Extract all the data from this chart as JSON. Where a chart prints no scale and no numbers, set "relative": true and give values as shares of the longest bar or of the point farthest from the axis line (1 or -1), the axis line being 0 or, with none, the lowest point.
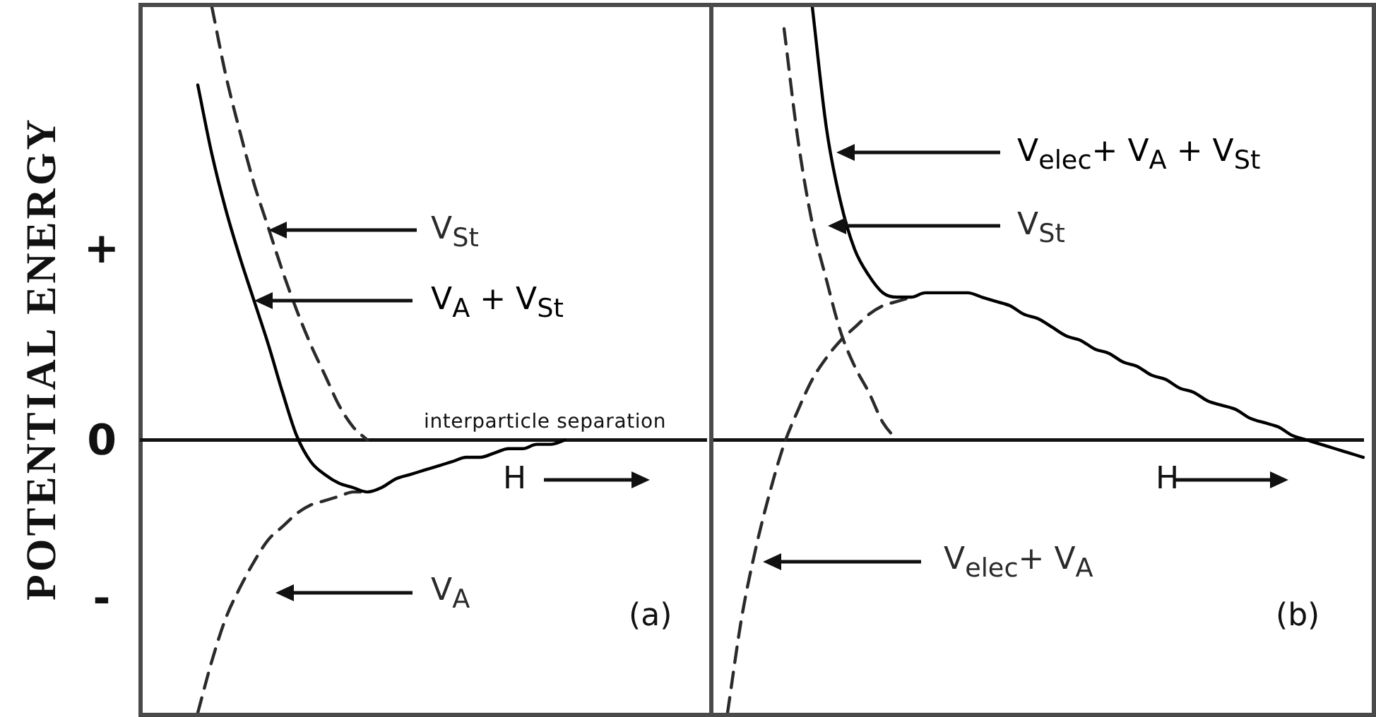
{
  "chart_data": [
    {
      "type": "line",
      "relative": true,
      "ylabel": "POTENTIAL ENERGY",
      "xlabel": "interparticle separation",
      "grid": false,
      "legend": false,
      "marker": "none",
      "categories": [
        null,
        null,
        null,
        null,
        null,
        null,
        null,
        null,
        null,
        null,
        null,
        null,
        null,
        null,
        null,
        null,
        null,
        null,
        null,
        null,
        null,
        null,
        null,
        null,
        null,
        null,
        null,
        null,
        null,
        null,
        null,
        null,
        null,
        null,
        null,
        null,
        null,
        null,
        null,
        null,
        null
      ],
      "series": [
        {
          "name": "V$_{St}$",
          "color": "#2a2a2a",
          "line_style": "dashed",
          "values": [
            null,
            null,
            null,
            null,
            null,
            1,
            0.84,
            0.71,
            0.59,
            0.49,
            0.39,
            0.3,
            0.22,
            0.15,
            0.08,
            0.03,
            0,
            null,
            null,
            null,
            null,
            null,
            null,
            null,
            null,
            null,
            null,
            null,
            null,
            null,
            null,
            null,
            null,
            null,
            null,
            null,
            null,
            null,
            null,
            null,
            null
          ]
        },
        {
          "name": "V$_{A}$ + V$_{St}$",
          "color": "#000000",
          "line_style": "solid",
          "values": [
            null,
            null,
            null,
            null,
            0.82,
            0.66,
            0.53,
            0.42,
            0.32,
            0.22,
            0.11,
            0.01,
            -0.05,
            -0.08,
            -0.1,
            -0.11,
            -0.12,
            -0.11,
            -0.09,
            -0.08,
            -0.07,
            -0.06,
            -0.05,
            -0.04,
            -0.04,
            -0.03,
            -0.02,
            -0.02,
            -0.01,
            -0.01,
            0,
            null,
            null,
            null,
            null,
            null,
            null,
            null,
            null,
            null,
            null
          ]
        },
        {
          "name": "V$_{A}$",
          "color": "#2a2a2a",
          "line_style": "dashed",
          "values": [
            null,
            null,
            null,
            null,
            -0.63,
            -0.51,
            -0.41,
            -0.34,
            -0.28,
            -0.23,
            -0.2,
            -0.17,
            -0.15,
            -0.14,
            -0.13,
            -0.12,
            -0.12,
            null,
            null,
            null,
            null,
            null,
            null,
            null,
            null,
            null,
            null,
            null,
            null,
            null,
            null,
            null,
            null,
            null,
            null,
            null,
            null,
            null,
            null,
            null,
            null
          ]
        }
      ],
      "annotations": [
        "+",
        "0",
        "-",
        "H",
        "(a)"
      ]
    },
    {
      "type": "line",
      "relative": true,
      "grid": false,
      "legend": false,
      "marker": "none",
      "categories": [
        null,
        null,
        null,
        null,
        null,
        null,
        null,
        null,
        null,
        null,
        null,
        null,
        null,
        null,
        null,
        null,
        null,
        null,
        null,
        null,
        null,
        null,
        null,
        null,
        null,
        null,
        null,
        null,
        null,
        null,
        null,
        null,
        null,
        null,
        null,
        null,
        null,
        null,
        null,
        null,
        null,
        null,
        null,
        null,
        null,
        null,
        null
      ],
      "series": [
        {
          "name": "V$_{elec}$+ V$_{A}$ + V$_{St}$",
          "color": "#000000",
          "line_style": "solid",
          "values": [
            null,
            null,
            null,
            null,
            null,
            null,
            null,
            1,
            0.72,
            0.55,
            0.44,
            0.38,
            0.34,
            0.33,
            0.33,
            0.34,
            0.34,
            0.34,
            0.34,
            0.33,
            0.32,
            0.31,
            0.29,
            0.28,
            0.26,
            0.24,
            0.23,
            0.21,
            0.2,
            0.18,
            0.17,
            0.15,
            0.14,
            0.12,
            0.11,
            0.09,
            0.08,
            0.07,
            0.05,
            0.04,
            0.03,
            0.01,
            0,
            -0.01,
            -0.02,
            -0.03,
            -0.04
          ]
        },
        {
          "name": "V$_{St}$",
          "color": "#2a2a2a",
          "line_style": "dashed",
          "values": [
            null,
            null,
            null,
            null,
            null,
            0.95,
            0.69,
            0.5,
            0.37,
            0.25,
            0.17,
            0.11,
            0.04,
            0,
            null,
            null,
            null,
            null,
            null,
            null,
            null,
            null,
            null,
            null,
            null,
            null,
            null,
            null,
            null,
            null,
            null,
            null,
            null,
            null,
            null,
            null,
            null,
            null,
            null,
            null,
            null,
            null,
            null,
            null,
            null,
            null,
            null
          ]
        },
        {
          "name": "V$_{elec}$+ V$_{A}$",
          "color": "#2a2a2a",
          "line_style": "dashed",
          "values": [
            null,
            -0.63,
            -0.41,
            -0.25,
            -0.12,
            -0.01,
            0.07,
            0.14,
            0.19,
            0.23,
            0.26,
            0.29,
            0.31,
            0.32,
            0.33,
            null,
            null,
            null,
            null,
            null,
            null,
            null,
            null,
            null,
            null,
            null,
            null,
            null,
            null,
            null,
            null,
            null,
            null,
            null,
            null,
            null,
            null,
            null,
            null,
            null,
            null,
            null,
            null,
            null,
            null,
            null,
            null
          ]
        }
      ],
      "annotations": [
        "H",
        "(b)"
      ]
    }
  ]
}
